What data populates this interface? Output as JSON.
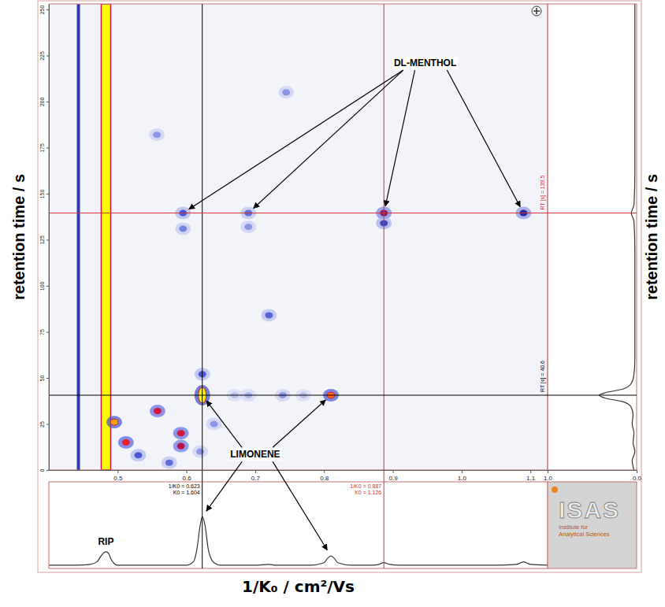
{
  "chart_data": {
    "type": "heatmap",
    "x_label": "1/K₀ / cm²/Vs",
    "y_label": "retention time / s",
    "xlim": [
      0.4,
      1.125
    ],
    "xticks": [
      0.5,
      0.6,
      0.7,
      0.8,
      0.9,
      {
        "value": 1,
        "label": "1.0"
      },
      1.1
    ],
    "ylim": [
      0,
      253
    ],
    "yticks": [
      0,
      25,
      50,
      75,
      100,
      125,
      150,
      175,
      200,
      225,
      250
    ],
    "zlim": [
      0,
      1
    ],
    "grid": false,
    "bands": {
      "x": [
        0.443,
        0.483
      ],
      "intensity": [
        0.55,
        1
      ]
    },
    "spots": {
      "x": [
        0.595,
        0.595,
        0.69,
        0.69,
        0.887,
        0.887,
        1.09,
        0.623,
        0.623,
        0.81,
        0.67,
        0.69,
        0.74,
        0.77,
        0.72,
        0.745,
        0.557,
        0.495,
        0.512,
        0.558,
        0.592,
        0.592,
        0.53,
        0.575,
        0.64,
        0.62
      ],
      "y": [
        139.5,
        131,
        139.5,
        132,
        139.5,
        134,
        139.5,
        40.6,
        52,
        40.6,
        40.6,
        40.6,
        40.6,
        40.6,
        84,
        205,
        182,
        26,
        15,
        32,
        20,
        13,
        8,
        4,
        25,
        10
      ],
      "intensity": [
        0.45,
        0.35,
        0.4,
        0.3,
        0.7,
        0.5,
        0.6,
        1,
        0.45,
        0.92,
        0.2,
        0.22,
        0.3,
        0.2,
        0.42,
        0.3,
        0.3,
        0.95,
        0.85,
        0.8,
        0.8,
        0.75,
        0.45,
        0.4,
        0.3,
        0.3
      ]
    },
    "x_cursors": {
      "values": [
        0.623,
        0.887
      ],
      "labels": [
        "1/K0 = 0.623",
        "1/K0 = 0.887"
      ],
      "sublabels": [
        "K0 = 1.604",
        "K0 = 1.126"
      ],
      "colors": [
        "#000000",
        "#d03030"
      ]
    },
    "y_cursors": {
      "values": [
        139.5,
        40.6
      ],
      "labels": [
        "RT [s] = 139.5",
        "RT [s] = 40.6"
      ],
      "colors": [
        "#d03030",
        "#000000"
      ]
    },
    "annotations": [
      {
        "text": "DL-MENTHOL",
        "x": 0.947,
        "y": 221,
        "targets": {
          "x": [
            0.595,
            0.69,
            0.887,
            1.09
          ],
          "y": [
            139.5,
            139.5,
            139.5,
            139.5
          ]
        }
      },
      {
        "text": "LIMONENE",
        "x": 0.7,
        "y": 8.5,
        "targets": {
          "x": [
            0.623,
            0.81
          ],
          "y": [
            40.6,
            40.6
          ]
        },
        "spectrum_targets": {
          "x": [
            0.623,
            0.81
          ],
          "y": [
            0.6,
            0.13
          ]
        }
      }
    ],
    "spectrum": {
      "type": "line",
      "x": [
        0.4,
        0.44,
        0.46,
        0.47,
        0.475,
        0.48,
        0.483,
        0.487,
        0.49,
        0.495,
        0.5,
        0.55,
        0.6,
        0.61,
        0.615,
        0.62,
        0.623,
        0.627,
        0.632,
        0.64,
        0.65,
        0.7,
        0.72,
        0.73,
        0.78,
        0.8,
        0.805,
        0.81,
        0.815,
        0.82,
        0.84,
        0.87,
        0.88,
        0.887,
        0.895,
        0.91,
        1.05,
        1.08,
        1.09,
        1.1,
        1.125
      ],
      "values": [
        0.02,
        0.02,
        0.03,
        0.06,
        0.12,
        0.17,
        0.18,
        0.16,
        0.1,
        0.04,
        0.02,
        0.02,
        0.02,
        0.06,
        0.2,
        0.5,
        0.6,
        0.5,
        0.2,
        0.05,
        0.02,
        0.02,
        0.03,
        0.02,
        0.02,
        0.05,
        0.1,
        0.13,
        0.1,
        0.05,
        0.02,
        0.02,
        0.03,
        0.05,
        0.03,
        0.02,
        0.02,
        0.03,
        0.06,
        0.03,
        0.02
      ],
      "ylim": [
        0,
        1
      ],
      "color": "#333333",
      "annotations": [
        {
          "text": "RIP",
          "x": 0.483,
          "y": 0.3
        }
      ]
    },
    "chromatogram": {
      "type": "line",
      "y_label": "retention time / s",
      "x": [
        0,
        5,
        10,
        15,
        20,
        25,
        30,
        34,
        37,
        39,
        40.6,
        42,
        44,
        47,
        52,
        60,
        80,
        100,
        120,
        135,
        139.5,
        144,
        160,
        200,
        253
      ],
      "values": [
        0.03,
        0.05,
        0.02,
        0.04,
        0.03,
        0.05,
        0.04,
        0.06,
        0.15,
        0.35,
        0.42,
        0.35,
        0.15,
        0.06,
        0.03,
        0.02,
        0.02,
        0.02,
        0.02,
        0.03,
        0.06,
        0.03,
        0.02,
        0.02,
        0.02
      ],
      "xlim": [
        1,
        0
      ],
      "xticks": [
        {
          "value": 1,
          "label": "1.0"
        },
        {
          "value": 0,
          "label": "0.0"
        }
      ],
      "color": "#333333"
    },
    "logo": {
      "name": "ISAS",
      "caption": [
        "Institute for",
        "Analytical Sciences"
      ]
    }
  }
}
